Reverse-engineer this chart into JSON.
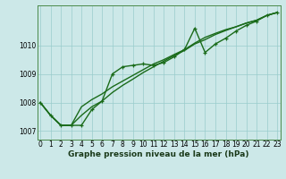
{
  "xlabel": "Graphe pression niveau de la mer (hPa)",
  "background_color": "#cce8e8",
  "grid_color": "#99cccc",
  "line_color": "#1a6b1a",
  "ylim": [
    1006.7,
    1011.4
  ],
  "xlim": [
    -0.3,
    23.3
  ],
  "yticks": [
    1007,
    1008,
    1009,
    1010
  ],
  "xticks": [
    0,
    1,
    2,
    3,
    4,
    5,
    6,
    7,
    8,
    9,
    10,
    11,
    12,
    13,
    14,
    15,
    16,
    17,
    18,
    19,
    20,
    21,
    22,
    23
  ],
  "line1_x": [
    0,
    1,
    2,
    3,
    4,
    5,
    6,
    7,
    8,
    9,
    10,
    11,
    12,
    13,
    14,
    15,
    16,
    17,
    18,
    19,
    20,
    21,
    22,
    23
  ],
  "line1_y": [
    1008.0,
    1007.55,
    1007.2,
    1007.2,
    1007.2,
    1007.75,
    1008.05,
    1009.0,
    1009.25,
    1009.3,
    1009.35,
    1009.3,
    1009.4,
    1009.6,
    1009.85,
    1010.6,
    1009.75,
    1010.05,
    1010.25,
    1010.5,
    1010.7,
    1010.85,
    1011.05,
    1011.15
  ],
  "line2_x": [
    0,
    1,
    2,
    3,
    4,
    5,
    6,
    7,
    8,
    9,
    10,
    11,
    12,
    13,
    14,
    15,
    16,
    17,
    18,
    19,
    20,
    21,
    22,
    23
  ],
  "line2_y": [
    1008.0,
    1007.55,
    1007.2,
    1007.2,
    1007.55,
    1007.85,
    1008.05,
    1008.35,
    1008.6,
    1008.82,
    1009.05,
    1009.25,
    1009.45,
    1009.65,
    1009.82,
    1010.05,
    1010.2,
    1010.38,
    1010.52,
    1010.65,
    1010.78,
    1010.88,
    1011.05,
    1011.15
  ],
  "line3_x": [
    0,
    1,
    2,
    3,
    4,
    5,
    6,
    7,
    8,
    9,
    10,
    11,
    12,
    13,
    14,
    15,
    16,
    17,
    18,
    19,
    20,
    21,
    22,
    23
  ],
  "line3_y": [
    1008.0,
    1007.55,
    1007.2,
    1007.2,
    1007.85,
    1008.1,
    1008.3,
    1008.55,
    1008.75,
    1008.95,
    1009.15,
    1009.35,
    1009.5,
    1009.68,
    1009.85,
    1010.08,
    1010.28,
    1010.42,
    1010.55,
    1010.65,
    1010.78,
    1010.88,
    1011.05,
    1011.15
  ],
  "yticklabels": [
    "1007",
    "1008",
    "1009",
    "1010"
  ],
  "xlabel_fontsize": 6.5,
  "tick_fontsize": 5.5,
  "linewidth": 1.0,
  "marker": "+",
  "markersize": 3.5
}
